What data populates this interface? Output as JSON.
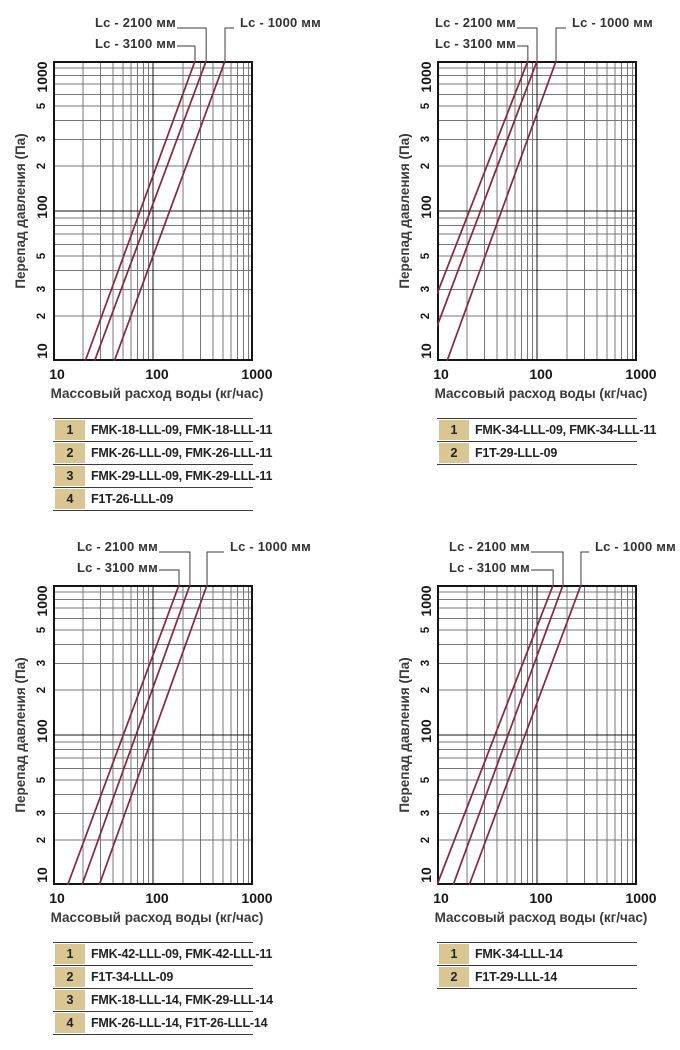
{
  "colors": {
    "background": "#ffffff",
    "curve": "#8b2340",
    "grid_minor": "#777777",
    "grid_major": "#151515",
    "plot_border": "#151515",
    "leader": "#3a3a3a",
    "table_number_bg": "#d9c693",
    "table_border": "#3c3c3c",
    "text": "#1f1f1f"
  },
  "chart_data": [
    {
      "position": "top-left",
      "type": "line",
      "grid": true,
      "x_axis": {
        "label": "Массовый расход воды (кг/час)",
        "scale": "log",
        "range": [
          10,
          1000
        ],
        "tick_labels": [
          "10",
          "100",
          "1000"
        ],
        "tick_values": [
          10,
          100,
          1000
        ]
      },
      "y_axis": {
        "label": "Перепад давления (Па)",
        "scale": "log",
        "range": [
          10,
          1000
        ],
        "tick_labels": [
          "10",
          "2",
          "3",
          "5",
          "100",
          "2",
          "3",
          "5",
          "1000"
        ],
        "tick_values": [
          10,
          20,
          30,
          50,
          100,
          200,
          300,
          500,
          1000
        ]
      },
      "series": [
        {
          "name": "Lc - 3100 мм",
          "points": [
            [
              21,
              10
            ],
            [
              263,
              1000
            ]
          ]
        },
        {
          "name": "Lc - 2100 мм",
          "points": [
            [
              26,
              10
            ],
            [
              340,
              1000
            ]
          ]
        },
        {
          "name": "Lc - 1000 мм",
          "points": [
            [
              41,
              10
            ],
            [
              525,
              1000
            ]
          ]
        }
      ],
      "annotations": [
        {
          "text": "Lc - 2100 мм",
          "series": 1,
          "row": 1,
          "side": "left"
        },
        {
          "text": "Lc - 3100 мм",
          "series": 0,
          "row": 2,
          "side": "left"
        },
        {
          "text": "Lc - 1000 мм",
          "series": 2,
          "row": 1,
          "side": "right"
        }
      ],
      "legend_table": [
        [
          "1",
          "FMK-18-LLL-09, FMK-18-LLL-11"
        ],
        [
          "2",
          "FMK-26-LLL-09, FMK-26-LLL-11"
        ],
        [
          "3",
          "FMK-29-LLL-09, FMK-29-LLL-11"
        ],
        [
          "4",
          "F1T-26-LLL-09"
        ]
      ]
    },
    {
      "position": "top-right",
      "type": "line",
      "grid": true,
      "x_axis": {
        "label": "Массовый расход воды (кг/час)",
        "scale": "log",
        "range": [
          10,
          1000
        ],
        "tick_labels": [
          "10",
          "100",
          "1000"
        ],
        "tick_values": [
          10,
          100,
          1000
        ]
      },
      "y_axis": {
        "label": "Перепад давления (Па)",
        "scale": "log",
        "range": [
          10,
          1000
        ],
        "tick_labels": [
          "10",
          "2",
          "3",
          "5",
          "100",
          "2",
          "3",
          "5",
          "1000"
        ],
        "tick_values": [
          10,
          20,
          30,
          50,
          100,
          200,
          300,
          500,
          1000
        ]
      },
      "series": [
        {
          "name": "Lc - 3100 мм",
          "points": [
            [
              10,
              28
            ],
            [
              81,
              1000
            ]
          ]
        },
        {
          "name": "Lc - 2100 мм",
          "points": [
            [
              10,
              17
            ],
            [
              100,
              1000
            ]
          ]
        },
        {
          "name": "Lc - 1000 мм",
          "points": [
            [
              12.6,
              10
            ],
            [
              155,
              1000
            ]
          ]
        }
      ],
      "annotations": [
        {
          "text": "Lc - 2100 мм",
          "series": 1,
          "row": 1,
          "side": "left"
        },
        {
          "text": "Lc - 3100 мм",
          "series": 0,
          "row": 2,
          "side": "left"
        },
        {
          "text": "Lc - 1000 мм",
          "series": 2,
          "row": 1,
          "side": "right"
        }
      ],
      "legend_table": [
        [
          "1",
          "FMK-34-LLL-09, FMK-34-LLL-11"
        ],
        [
          "2",
          "F1T-29-LLL-09"
        ]
      ]
    },
    {
      "position": "bottom-left",
      "type": "line",
      "grid": true,
      "x_axis": {
        "label": "Массовый расход воды (кг/час)",
        "scale": "log",
        "range": [
          10,
          1000
        ],
        "tick_labels": [
          "10",
          "100",
          "1000"
        ],
        "tick_values": [
          10,
          100,
          1000
        ]
      },
      "y_axis": {
        "label": "Перепад давления (Па)",
        "scale": "log",
        "range": [
          10,
          1000
        ],
        "tick_labels": [
          "10",
          "2",
          "3",
          "5",
          "100",
          "2",
          "3",
          "5",
          "1000"
        ],
        "tick_values": [
          10,
          20,
          30,
          50,
          100,
          200,
          300,
          500,
          1000
        ]
      },
      "series": [
        {
          "name": "Lc - 3100 мм",
          "points": [
            [
              14,
              10
            ],
            [
              182,
              1000
            ]
          ]
        },
        {
          "name": "Lc - 2100 мм",
          "points": [
            [
              19.5,
              10
            ],
            [
              234,
              1000
            ]
          ]
        },
        {
          "name": "Lc - 1000 мм",
          "points": [
            [
              29,
              10
            ],
            [
              347,
              1000
            ]
          ]
        }
      ],
      "annotations": [
        {
          "text": "Lc - 2100 мм",
          "series": 1,
          "row": 1,
          "side": "left"
        },
        {
          "text": "Lc - 3100 мм",
          "series": 0,
          "row": 2,
          "side": "left"
        },
        {
          "text": "Lc - 1000 мм",
          "series": 2,
          "row": 1,
          "side": "right"
        }
      ],
      "legend_table": [
        [
          "1",
          "FMK-42-LLL-09, FMK-42-LLL-11"
        ],
        [
          "2",
          "F1T-34-LLL-09"
        ],
        [
          "3",
          "FMK-18-LLL-14, FMK-29-LLL-14"
        ],
        [
          "4",
          "FMK-26-LLL-14, F1T-26-LLL-14"
        ]
      ]
    },
    {
      "position": "bottom-right",
      "type": "line",
      "grid": true,
      "x_axis": {
        "label": "Массовый расход воды (кг/час)",
        "scale": "log",
        "range": [
          10,
          1000
        ],
        "tick_labels": [
          "10",
          "100",
          "1000"
        ],
        "tick_values": [
          10,
          100,
          1000
        ]
      },
      "y_axis": {
        "label": "Перепад давления (Па)",
        "scale": "log",
        "range": [
          10,
          1000
        ],
        "tick_labels": [
          "10",
          "2",
          "3",
          "5",
          "100",
          "2",
          "3",
          "5",
          "1000"
        ],
        "tick_values": [
          10,
          20,
          30,
          50,
          100,
          200,
          300,
          500,
          1000
        ]
      },
      "series": [
        {
          "name": "Lc - 3100 мм",
          "points": [
            [
              10,
              10
            ],
            [
              145,
              1000
            ]
          ]
        },
        {
          "name": "Lc - 2100 мм",
          "points": [
            [
              14.5,
              10
            ],
            [
              182,
              1000
            ]
          ]
        },
        {
          "name": "Lc - 1000 мм",
          "points": [
            [
              21,
              10
            ],
            [
              275,
              1000
            ]
          ]
        }
      ],
      "annotations": [
        {
          "text": "Lc - 2100 мм",
          "series": 1,
          "row": 1,
          "side": "left"
        },
        {
          "text": "Lc - 3100 мм",
          "series": 0,
          "row": 2,
          "side": "left"
        },
        {
          "text": "Lc - 1000 мм",
          "series": 2,
          "row": 1,
          "side": "right"
        }
      ],
      "legend_table": [
        [
          "1",
          "FMK-34-LLL-14"
        ],
        [
          "2",
          "F1T-29-LLL-14"
        ]
      ]
    }
  ]
}
